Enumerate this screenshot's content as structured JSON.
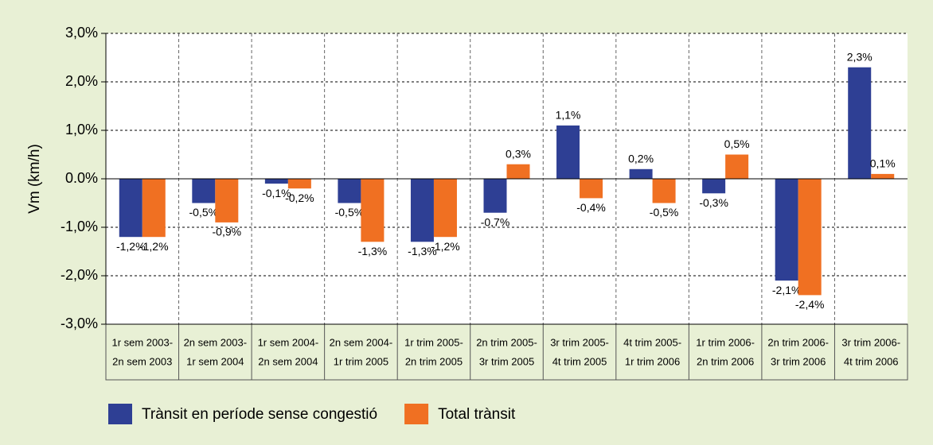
{
  "chart_data": {
    "type": "bar",
    "y_label": "Vm (km/h)",
    "categories": [
      [
        "1r sem 2003-",
        "2n sem 2003"
      ],
      [
        "2n sem 2003-",
        "1r sem 2004"
      ],
      [
        "1r sem 2004-",
        "2n sem 2004"
      ],
      [
        "2n sem 2004-",
        "1r trim 2005"
      ],
      [
        "1r trim 2005-",
        "2n trim 2005"
      ],
      [
        "2n trim 2005-",
        "3r trim 2005"
      ],
      [
        "3r trim 2005-",
        "4t trim 2005"
      ],
      [
        "4t trim 2005-",
        "1r trim 2006"
      ],
      [
        "1r trim 2006-",
        "2n trim 2006"
      ],
      [
        "2n trim 2006-",
        "3r trim 2006"
      ],
      [
        "3r trim 2006-",
        "4t trim 2006"
      ]
    ],
    "series": [
      {
        "name": "Trànsit en període sense congestió",
        "color": "#2e3f94",
        "values": [
          -1.2,
          -0.5,
          -0.1,
          -0.5,
          -1.3,
          -0.7,
          1.1,
          0.2,
          -0.3,
          -2.1,
          2.3
        ],
        "value_labels": [
          "-1,2%",
          "-0,5%",
          "-0,1%",
          "-0,5%",
          "-1,3%",
          "-0,7%",
          "1,1%",
          "0,2%",
          "-0,3%",
          "-2,1%",
          "2,3%"
        ]
      },
      {
        "name": "Total trànsit",
        "color": "#f07022",
        "values": [
          -1.2,
          -0.9,
          -0.2,
          -1.3,
          -1.2,
          0.3,
          -0.4,
          -0.5,
          0.5,
          -2.4,
          0.1
        ],
        "value_labels": [
          "-1,2%",
          "-0,9%",
          "-0,2%",
          "-1,3%",
          "-1,2%",
          "0,3%",
          "-0,4%",
          "-0,5%",
          "0,5%",
          "-2,4%",
          "0,1%"
        ]
      }
    ],
    "ylim": [
      -3,
      3
    ],
    "yticks": [
      {
        "value": -3,
        "label": "-3,0%"
      },
      {
        "value": -2,
        "label": "-2,0%"
      },
      {
        "value": -1,
        "label": "-1,0%"
      },
      {
        "value": 0,
        "label": "0.0%"
      },
      {
        "value": 1,
        "label": "1,0%"
      },
      {
        "value": 2,
        "label": "2,0%"
      },
      {
        "value": 3,
        "label": "3,0%"
      }
    ],
    "grid": true
  }
}
